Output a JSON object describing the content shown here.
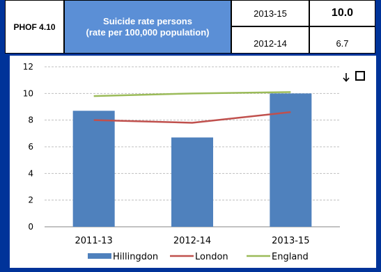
{
  "header": {
    "indicator_id": "PHOF 4.10",
    "title": "Suicide rate persons\n(rate per 100,000 population)",
    "period1": "2013-15",
    "value1": "10.0",
    "period2": "2012-14",
    "value2": "6.7"
  },
  "icons": [
    "sort-icon",
    "expand-icon"
  ],
  "colors": {
    "frame": "#003399",
    "title_bg": "#5b8fd6",
    "bar": "#4f81bd",
    "london": "#c0504d",
    "england": "#9bbb59"
  },
  "chart_data": {
    "type": "bar",
    "categories": [
      "2011-13",
      "2012-14",
      "2013-15"
    ],
    "series": [
      {
        "name": "Hillingdon",
        "type": "bar",
        "values": [
          8.7,
          6.7,
          10.0
        ]
      },
      {
        "name": "London",
        "type": "line",
        "values": [
          8.0,
          7.8,
          8.6
        ]
      },
      {
        "name": "England",
        "type": "line",
        "values": [
          9.8,
          10.0,
          10.1
        ]
      }
    ],
    "ylim": [
      0,
      12
    ],
    "yticks": [
      "0",
      "2",
      "4",
      "6",
      "8",
      "10",
      "12"
    ],
    "grid": true,
    "legend_position": "bottom"
  }
}
